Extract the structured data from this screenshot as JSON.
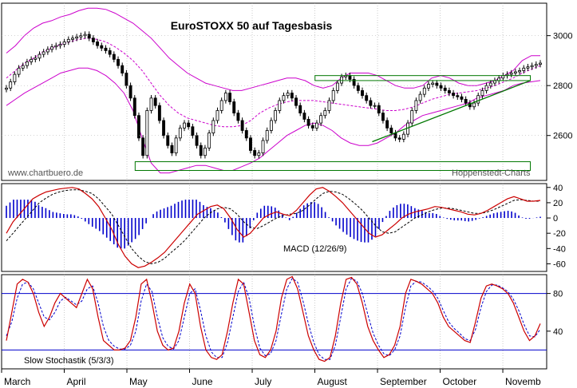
{
  "chart_data": [
    {
      "type": "candlestick",
      "title": "EuroSTOXX 50 auf Tagesbasis",
      "watermark_left": "www.chartbuero.de",
      "watermark_right": "Hoppenstedt-Charts",
      "yticks": [
        "3000",
        "2800",
        "2600"
      ],
      "ylim": [
        2420,
        3130
      ],
      "months": [
        "March",
        "April",
        "May",
        "June",
        "July",
        "August",
        "September",
        "October",
        "Novemb"
      ],
      "price": [
        2790,
        2815,
        2845,
        2870,
        2880,
        2895,
        2905,
        2910,
        2925,
        2935,
        2945,
        2955,
        2960,
        2965,
        2975,
        2985,
        2990,
        2995,
        3000,
        3005,
        2990,
        2975,
        2960,
        2950,
        2940,
        2925,
        2905,
        2880,
        2850,
        2800,
        2750,
        2680,
        2590,
        2520,
        2700,
        2750,
        2720,
        2660,
        2600,
        2560,
        2530,
        2590,
        2630,
        2650,
        2635,
        2600,
        2560,
        2520,
        2550,
        2610,
        2660,
        2700,
        2740,
        2770,
        2735,
        2690,
        2660,
        2620,
        2590,
        2540,
        2520,
        2530,
        2580,
        2620,
        2660,
        2700,
        2740,
        2760,
        2770,
        2750,
        2720,
        2690,
        2665,
        2640,
        2630,
        2650,
        2680,
        2700,
        2740,
        2780,
        2810,
        2835,
        2840,
        2825,
        2800,
        2780,
        2760,
        2740,
        2720,
        2720,
        2690,
        2660,
        2630,
        2610,
        2590,
        2585,
        2605,
        2650,
        2700,
        2740,
        2765,
        2790,
        2805,
        2810,
        2800,
        2790,
        2780,
        2770,
        2760,
        2755,
        2745,
        2730,
        2715,
        2730,
        2760,
        2780,
        2800,
        2810,
        2820,
        2830,
        2840,
        2845,
        2850,
        2855,
        2860,
        2870,
        2875,
        2880,
        2885,
        2890
      ],
      "bollinger": {
        "upper": [
          2930,
          2960,
          3000,
          3030,
          3050,
          3060,
          3075,
          3085,
          3100,
          3110,
          3110,
          3105,
          3090,
          3070,
          3050,
          3020,
          2990,
          2950,
          2910,
          2880,
          2850,
          2830,
          2810,
          2800,
          2790,
          2780,
          2780,
          2790,
          2800,
          2810,
          2820,
          2830,
          2830,
          2820,
          2800,
          2790,
          2800,
          2830,
          2850,
          2850,
          2850,
          2840,
          2820,
          2800,
          2790,
          2790,
          2800,
          2830,
          2840,
          2830,
          2810,
          2800,
          2800,
          2810,
          2820,
          2840,
          2860,
          2900,
          2920,
          2920
        ],
        "mid": [
          2830,
          2860,
          2890,
          2910,
          2935,
          2950,
          2965,
          2975,
          2985,
          2990,
          2985,
          2975,
          2955,
          2930,
          2900,
          2860,
          2810,
          2760,
          2720,
          2690,
          2670,
          2660,
          2650,
          2640,
          2635,
          2635,
          2640,
          2660,
          2690,
          2710,
          2725,
          2735,
          2740,
          2740,
          2740,
          2735,
          2730,
          2725,
          2720,
          2715,
          2710,
          2705,
          2700,
          2700,
          2705,
          2715,
          2730,
          2745,
          2755,
          2765,
          2770,
          2775,
          2780,
          2790,
          2800,
          2815,
          2830,
          2850,
          2865,
          2880
        ],
        "lower": [
          2720,
          2745,
          2770,
          2790,
          2810,
          2830,
          2850,
          2860,
          2870,
          2870,
          2860,
          2840,
          2810,
          2770,
          2700,
          2590,
          2490,
          2450,
          2450,
          2460,
          2470,
          2480,
          2480,
          2470,
          2460,
          2460,
          2475,
          2490,
          2510,
          2540,
          2570,
          2600,
          2620,
          2640,
          2650,
          2640,
          2620,
          2590,
          2570,
          2560,
          2560,
          2570,
          2590,
          2610,
          2640,
          2660,
          2680,
          2690,
          2700,
          2710,
          2720,
          2730,
          2750,
          2760,
          2770,
          2780,
          2800,
          2810,
          2815,
          2820
        ]
      }
    },
    {
      "type": "line+bar",
      "name": "MACD",
      "label": "MACD (12/26/9)",
      "yticks": [
        "40",
        "20",
        "0",
        "-20",
        "-40",
        "-60"
      ],
      "ylim": [
        -70,
        45
      ],
      "macd": [
        -20,
        -5,
        5,
        15,
        25,
        30,
        34,
        36,
        38,
        39,
        40,
        38,
        32,
        25,
        15,
        0,
        -15,
        -35,
        -50,
        -60,
        -65,
        -63,
        -58,
        -52,
        -45,
        -35,
        -25,
        -15,
        -5,
        5,
        10,
        15,
        17,
        12,
        0,
        -15,
        -25,
        -20,
        -10,
        0,
        5,
        8,
        5,
        3,
        10,
        20,
        30,
        38,
        40,
        35,
        28,
        20,
        10,
        0,
        -10,
        -20,
        -25,
        -22,
        -15,
        -8,
        0,
        5,
        8,
        10,
        12,
        15,
        14,
        12,
        10,
        8,
        5,
        4,
        6,
        10,
        15,
        20,
        25,
        28,
        25,
        22,
        22,
        23
      ],
      "signal": [
        -30,
        -20,
        -10,
        0,
        10,
        20,
        26,
        31,
        34,
        36,
        37,
        37,
        35,
        32,
        25,
        15,
        5,
        -10,
        -25,
        -40,
        -50,
        -57,
        -60,
        -58,
        -53,
        -45,
        -38,
        -30,
        -20,
        -10,
        0,
        7,
        12,
        14,
        12,
        5,
        -5,
        -12,
        -14,
        -10,
        -5,
        0,
        3,
        5,
        6,
        10,
        17,
        25,
        32,
        35,
        34,
        31,
        25,
        18,
        10,
        0,
        -10,
        -18,
        -20,
        -18,
        -12,
        -6,
        0,
        4,
        8,
        11,
        13,
        13,
        12,
        10,
        8,
        6,
        6,
        8,
        11,
        15,
        19,
        23,
        24,
        23,
        22,
        22
      ]
    },
    {
      "type": "line",
      "name": "Slow Stochastik",
      "label": "Slow Stochastik (5/3/3)",
      "yticks": [
        "80",
        "40"
      ],
      "ylim": [
        0,
        100
      ],
      "hlines": [
        80,
        20
      ],
      "k": [
        30,
        60,
        90,
        95,
        92,
        80,
        60,
        45,
        55,
        70,
        80,
        75,
        70,
        65,
        80,
        95,
        85,
        55,
        30,
        25,
        20,
        20,
        22,
        30,
        55,
        90,
        95,
        70,
        40,
        25,
        20,
        22,
        40,
        70,
        90,
        80,
        45,
        20,
        12,
        10,
        15,
        40,
        70,
        95,
        90,
        60,
        30,
        15,
        12,
        20,
        40,
        75,
        95,
        98,
        85,
        60,
        35,
        20,
        10,
        8,
        12,
        35,
        70,
        95,
        97,
        90,
        70,
        45,
        30,
        20,
        12,
        15,
        25,
        45,
        80,
        95,
        93,
        90,
        85,
        80,
        70,
        55,
        45,
        40,
        35,
        30,
        28,
        50,
        75,
        88,
        90,
        88,
        85,
        80,
        70,
        55,
        40,
        30,
        35,
        48
      ],
      "d": [
        35,
        50,
        75,
        90,
        92,
        85,
        70,
        55,
        52,
        60,
        72,
        76,
        72,
        68,
        72,
        85,
        88,
        70,
        45,
        30,
        24,
        21,
        21,
        25,
        40,
        72,
        90,
        82,
        55,
        33,
        24,
        21,
        30,
        55,
        80,
        85,
        62,
        35,
        18,
        12,
        12,
        28,
        55,
        82,
        92,
        75,
        45,
        22,
        14,
        16,
        30,
        58,
        85,
        96,
        92,
        72,
        48,
        28,
        15,
        10,
        10,
        25,
        55,
        85,
        96,
        93,
        80,
        58,
        38,
        25,
        16,
        14,
        20,
        35,
        65,
        88,
        93,
        92,
        88,
        83,
        75,
        62,
        50,
        43,
        38,
        32,
        30,
        42,
        65,
        82,
        89,
        89,
        86,
        82,
        74,
        62,
        47,
        35,
        34,
        42
      ]
    }
  ],
  "colors": {
    "candle": "#000000",
    "bollinger": "#cc00cc",
    "macd": "#cc0000",
    "signal": "#000000",
    "histogram": "#0000cc",
    "stoch_k": "#cc0000",
    "stoch_d": "#0000cc",
    "level": "#0000cc",
    "rectangle": "#007700",
    "trendline": "#007700",
    "grid": "#aaaaaa"
  }
}
